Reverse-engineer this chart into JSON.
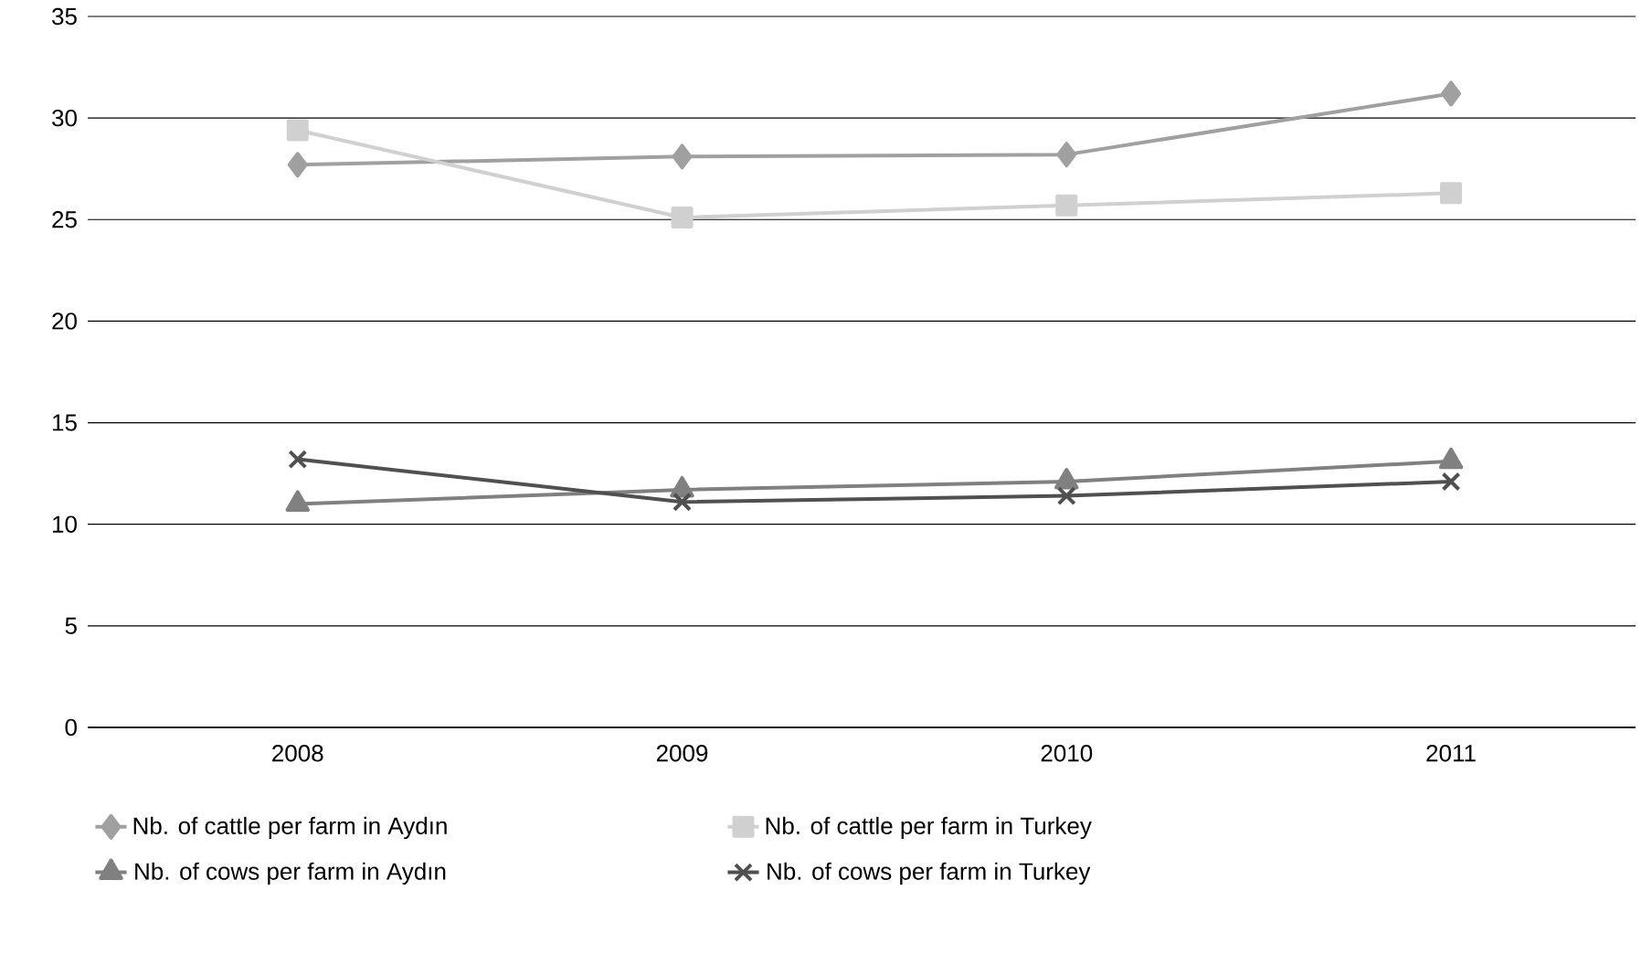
{
  "chart_data": {
    "type": "line",
    "categories": [
      "2008",
      "2009",
      "2010",
      "2011"
    ],
    "series": [
      {
        "name": "Nb. of cattle per farm in Aydın",
        "color": "#a0a0a0",
        "marker": "diamond",
        "values": [
          27.7,
          28.1,
          28.2,
          31.2
        ]
      },
      {
        "name": "Nb. of cattle per farm in Turkey",
        "color": "#d0d0d0",
        "marker": "square",
        "values": [
          29.4,
          25.1,
          25.7,
          26.3
        ]
      },
      {
        "name": "Nb. of cows per farm in Aydın",
        "color": "#808080",
        "marker": "triangle",
        "values": [
          11.0,
          11.7,
          12.1,
          13.1
        ]
      },
      {
        "name": "Nb. of cows per farm in Turkey",
        "color": "#505050",
        "marker": "cross",
        "values": [
          13.2,
          11.1,
          11.4,
          12.1
        ]
      }
    ],
    "ylim": [
      0,
      35
    ],
    "yticks": [
      0,
      5,
      10,
      15,
      20,
      25,
      30,
      35
    ],
    "grid": "y",
    "legend": "bottom",
    "line_style": "solid"
  }
}
